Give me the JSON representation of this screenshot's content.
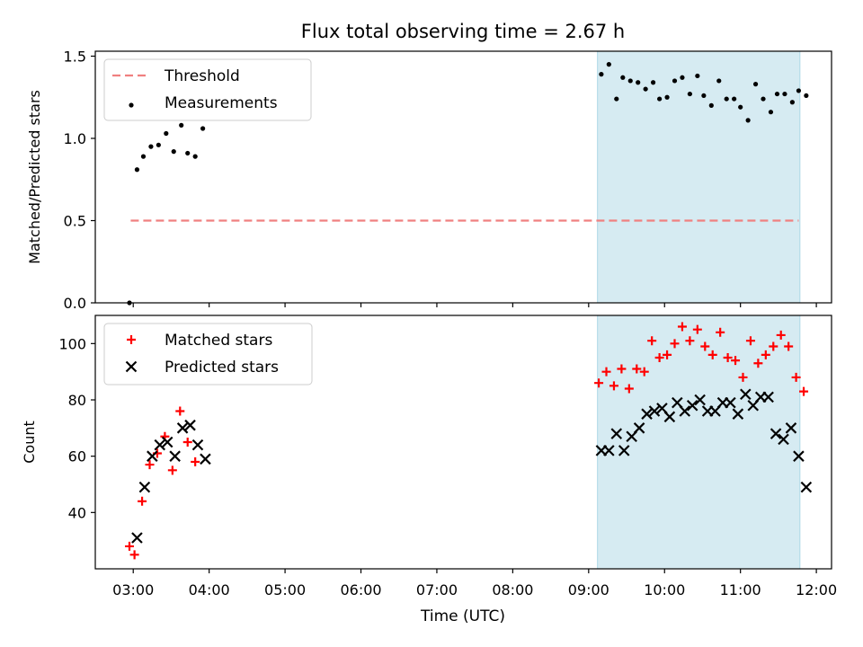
{
  "title": "Flux total observing time = 2.67 h",
  "xlabel": "Time (UTC)",
  "colors": {
    "threshold": "#f08080",
    "measurement": "#000000",
    "matched": "#ff0000",
    "predicted": "#000000",
    "span_fill": "#add8e6"
  },
  "chart_data": [
    {
      "type": "scatter",
      "ylabel": "Matched/Predicted stars",
      "ylim": [
        0,
        1.53
      ],
      "yticks": [
        "0.0",
        "0.5",
        "1.0",
        "1.5"
      ],
      "ytick_values": [
        0,
        0.5,
        1.0,
        1.5
      ],
      "xlim": [
        "02:30",
        "12:12"
      ],
      "legend": {
        "placement": "top-left",
        "entries": [
          "Threshold",
          "Measurements"
        ]
      },
      "highlight_span": [
        "09:07",
        "11:47"
      ],
      "threshold": {
        "name": "Threshold",
        "value": 0.5,
        "x": [
          "02:58",
          "11:46"
        ]
      },
      "series": [
        {
          "name": "Measurements",
          "x": [
            "02:57",
            "03:03",
            "03:08",
            "03:14",
            "03:20",
            "03:26",
            "03:32",
            "03:38",
            "03:43",
            "03:49",
            "03:55",
            "09:10",
            "09:16",
            "09:22",
            "09:27",
            "09:33",
            "09:39",
            "09:45",
            "09:51",
            "09:56",
            "10:02",
            "10:08",
            "10:14",
            "10:20",
            "10:26",
            "10:31",
            "10:37",
            "10:43",
            "10:49",
            "10:55",
            "11:00",
            "11:06",
            "11:12",
            "11:18",
            "11:24",
            "11:29",
            "11:35",
            "11:41",
            "11:46",
            "11:52"
          ],
          "y": [
            0.0,
            0.81,
            0.89,
            0.95,
            0.96,
            1.03,
            0.92,
            1.08,
            0.91,
            0.89,
            1.06,
            1.39,
            1.45,
            1.24,
            1.37,
            1.35,
            1.34,
            1.3,
            1.34,
            1.24,
            1.25,
            1.35,
            1.37,
            1.27,
            1.38,
            1.26,
            1.2,
            1.35,
            1.24,
            1.24,
            1.19,
            1.11,
            1.33,
            1.24,
            1.16,
            1.27,
            1.27,
            1.22,
            1.29,
            1.26
          ]
        }
      ]
    },
    {
      "type": "scatter",
      "ylabel": "Count",
      "ylim": [
        20,
        110
      ],
      "yticks": [
        "40",
        "60",
        "80",
        "100"
      ],
      "ytick_values": [
        40,
        60,
        80,
        100
      ],
      "xlim": [
        "02:30",
        "12:12"
      ],
      "xticks": [
        "03:00",
        "04:00",
        "05:00",
        "06:00",
        "07:00",
        "08:00",
        "09:00",
        "10:00",
        "11:00",
        "12:00"
      ],
      "legend": {
        "placement": "top-left",
        "entries": [
          "Matched stars",
          "Predicted stars"
        ]
      },
      "highlight_span": [
        "09:07",
        "11:47"
      ],
      "series": [
        {
          "name": "Matched stars",
          "marker": "+",
          "x": [
            "02:57",
            "03:01",
            "03:07",
            "03:13",
            "03:19",
            "03:25",
            "03:31",
            "03:37",
            "03:43",
            "03:49",
            "09:08",
            "09:14",
            "09:20",
            "09:26",
            "09:32",
            "09:38",
            "09:44",
            "09:50",
            "09:56",
            "10:02",
            "10:08",
            "10:14",
            "10:20",
            "10:26",
            "10:32",
            "10:38",
            "10:44",
            "10:50",
            "10:56",
            "11:02",
            "11:08",
            "11:14",
            "11:20",
            "11:26",
            "11:32",
            "11:38",
            "11:44",
            "11:50"
          ],
          "y": [
            28,
            25,
            44,
            57,
            61,
            67,
            55,
            76,
            65,
            58,
            86,
            90,
            85,
            91,
            84,
            91,
            90,
            101,
            95,
            96,
            100,
            106,
            101,
            105,
            99,
            96,
            104,
            95,
            94,
            88,
            101,
            93,
            96,
            99,
            103,
            99,
            88,
            83
          ]
        },
        {
          "name": "Predicted stars",
          "marker": "x",
          "x": [
            "03:03",
            "03:09",
            "03:15",
            "03:21",
            "03:27",
            "03:33",
            "03:39",
            "03:45",
            "03:51",
            "03:57",
            "09:10",
            "09:16",
            "09:22",
            "09:28",
            "09:34",
            "09:40",
            "09:46",
            "09:52",
            "09:58",
            "10:04",
            "10:10",
            "10:16",
            "10:22",
            "10:28",
            "10:34",
            "10:40",
            "10:46",
            "10:52",
            "10:58",
            "11:04",
            "11:10",
            "11:16",
            "11:22",
            "11:28",
            "11:34",
            "11:40",
            "11:46",
            "11:52"
          ],
          "y": [
            31,
            49,
            60,
            64,
            65,
            60,
            70,
            71,
            64,
            59,
            62,
            62,
            68,
            62,
            67,
            70,
            75,
            76,
            77,
            74,
            79,
            76,
            78,
            80,
            76,
            76,
            79,
            79,
            75,
            82,
            78,
            81,
            81,
            68,
            66,
            70,
            60,
            49
          ]
        }
      ]
    }
  ]
}
